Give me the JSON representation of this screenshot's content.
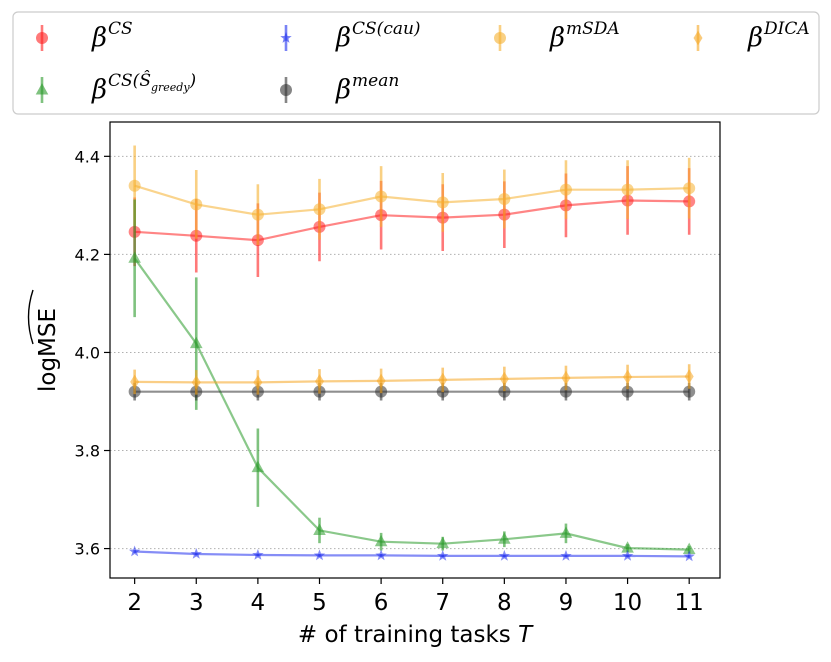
{
  "chart_data": {
    "type": "line",
    "title": "",
    "xlabel": "# of training tasks",
    "xlabel_var": "T",
    "ylabel": "logMSE",
    "x": [
      2,
      3,
      4,
      5,
      6,
      7,
      8,
      9,
      10,
      11
    ],
    "xlim": [
      1.6,
      11.5
    ],
    "ylim": [
      3.54,
      4.47
    ],
    "yticks": [
      3.6,
      3.8,
      4.0,
      4.2,
      4.4
    ],
    "ytick_labels": [
      "3.6",
      "3.8",
      "4.0",
      "4.2",
      "4.4"
    ],
    "xtick_labels": [
      "2",
      "3",
      "4",
      "5",
      "6",
      "7",
      "8",
      "9",
      "10",
      "11"
    ],
    "grid": "horizontal dotted",
    "legend_position": "top, above plot, 4 columns",
    "series": [
      {
        "name": "CS",
        "legend_base": "β",
        "legend_sup": "CS",
        "color": "#ff2020",
        "marker": "circle",
        "values": [
          4.246,
          4.238,
          4.229,
          4.256,
          4.28,
          4.275,
          4.281,
          4.3,
          4.31,
          4.308
        ],
        "errors": [
          0.07,
          0.075,
          0.075,
          0.07,
          0.07,
          0.068,
          0.068,
          0.065,
          0.07,
          0.068
        ]
      },
      {
        "name": "CS(greedy)",
        "legend_base": "β",
        "legend_sup": "CS(Ŝ",
        "legend_sub": "greedy",
        "legend_sup_end": ")",
        "color": "#2a9a2a",
        "marker": "triangle",
        "values": [
          4.192,
          4.018,
          3.765,
          3.637,
          3.614,
          3.61,
          3.619,
          3.631,
          3.601,
          3.598
        ],
        "errors": [
          0.12,
          0.135,
          0.08,
          0.026,
          0.018,
          0.014,
          0.016,
          0.02,
          0.008,
          0.007
        ]
      },
      {
        "name": "CS(cau)",
        "legend_base": "β",
        "legend_sup": "CS(cau)",
        "color": "#2030ee",
        "marker": "star",
        "values": [
          3.594,
          3.589,
          3.587,
          3.586,
          3.586,
          3.585,
          3.585,
          3.585,
          3.585,
          3.584
        ],
        "errors": [
          0.003,
          0.003,
          0.003,
          0.003,
          0.003,
          0.003,
          0.003,
          0.003,
          0.003,
          0.003
        ]
      },
      {
        "name": "mean",
        "legend_base": "β",
        "legend_sup": "mean",
        "color": "#333333",
        "marker": "circle",
        "values": [
          3.92,
          3.92,
          3.92,
          3.92,
          3.92,
          3.92,
          3.92,
          3.92,
          3.92,
          3.92
        ],
        "errors": [
          0.018,
          0.018,
          0.018,
          0.018,
          0.018,
          0.018,
          0.018,
          0.018,
          0.018,
          0.018
        ]
      },
      {
        "name": "mSDA",
        "legend_base": "β",
        "legend_sup": "mSDA",
        "color": "#f5b030",
        "marker": "circle",
        "values": [
          4.34,
          4.302,
          4.281,
          4.292,
          4.318,
          4.306,
          4.313,
          4.332,
          4.332,
          4.335
        ],
        "errors": [
          0.082,
          0.07,
          0.062,
          0.062,
          0.062,
          0.06,
          0.06,
          0.06,
          0.06,
          0.062
        ]
      },
      {
        "name": "DICA",
        "legend_base": "β",
        "legend_sup": "DICA",
        "color": "#f5a623",
        "marker": "diamond",
        "values": [
          3.94,
          3.939,
          3.939,
          3.941,
          3.942,
          3.944,
          3.946,
          3.948,
          3.95,
          3.951
        ],
        "errors": [
          0.025,
          0.025,
          0.025,
          0.025,
          0.025,
          0.025,
          0.025,
          0.025,
          0.025,
          0.025
        ]
      }
    ]
  }
}
